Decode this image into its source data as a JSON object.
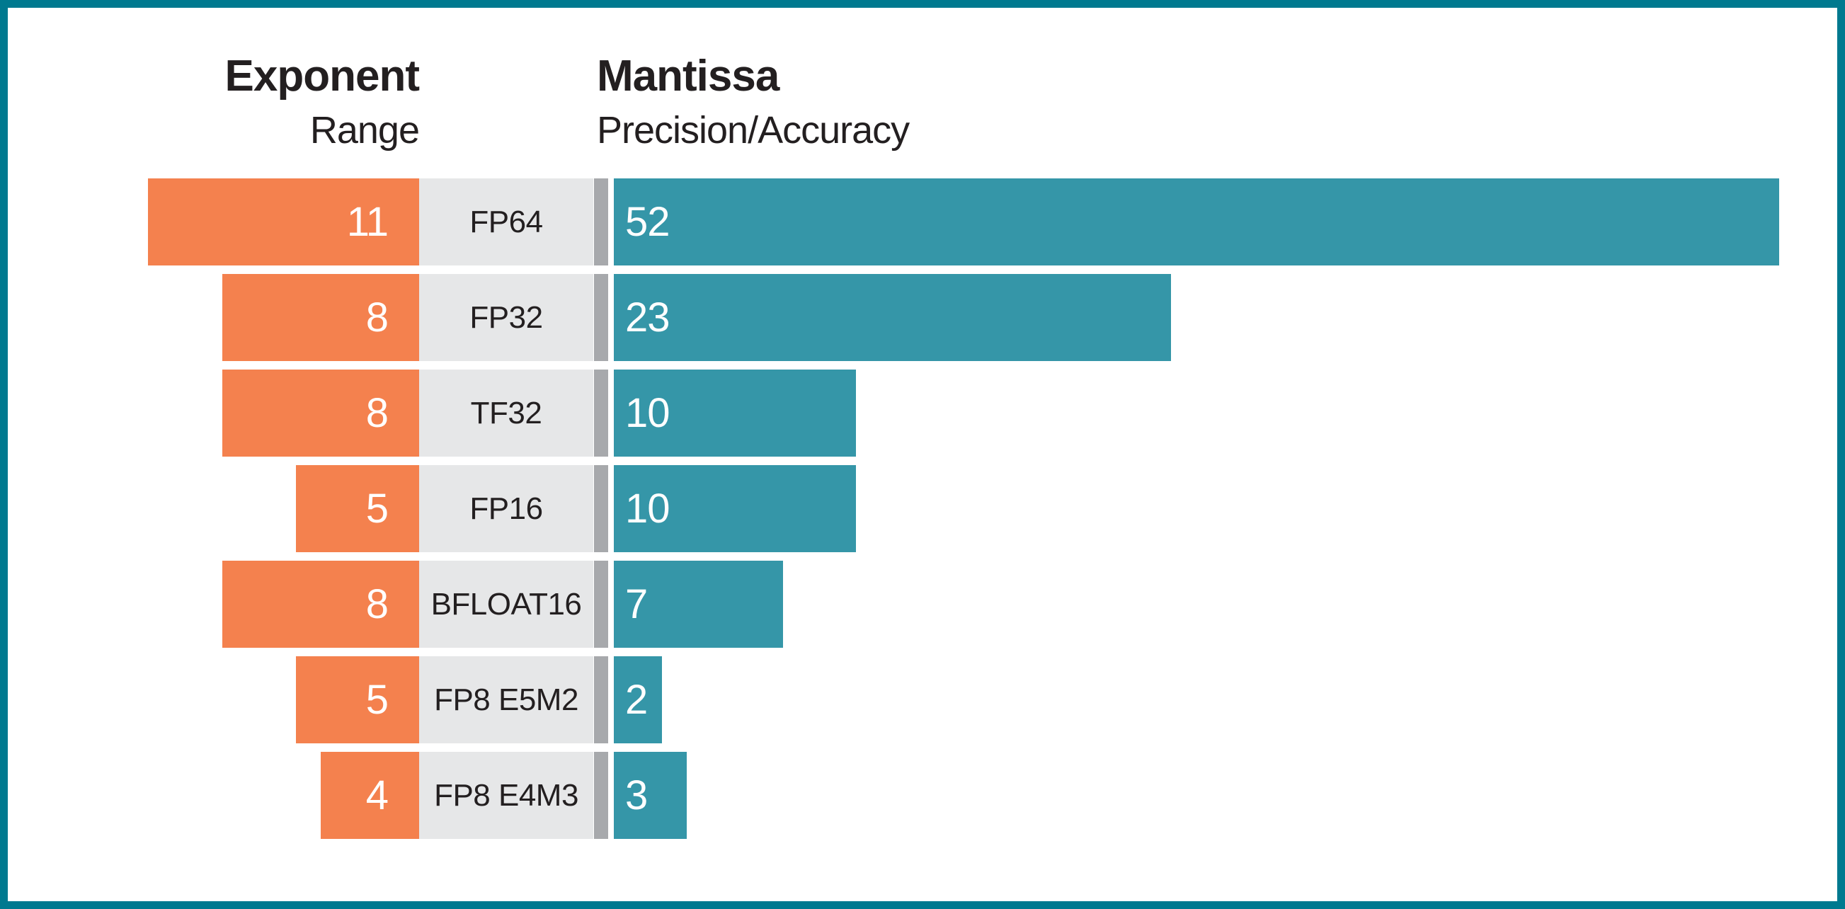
{
  "chart_data": {
    "type": "bar",
    "orientation": "horizontal-diverging",
    "title": "",
    "headers": {
      "exponent_title": "Exponent",
      "exponent_subtitle": "Range",
      "mantissa_title": "Mantissa",
      "mantissa_subtitle": "Precision/Accuracy"
    },
    "categories": [
      "FP64",
      "FP32",
      "TF32",
      "FP16",
      "BFLOAT16",
      "FP8 E5M2",
      "FP8 E4M3"
    ],
    "series": [
      {
        "name": "Exponent Range (bits)",
        "direction": "left",
        "color": "#F4814E",
        "values": [
          11,
          8,
          8,
          5,
          8,
          5,
          4
        ]
      },
      {
        "name": "Mantissa Precision/Accuracy (bits)",
        "direction": "right",
        "color": "#3596A8",
        "values": [
          52,
          23,
          10,
          10,
          7,
          2,
          3
        ]
      }
    ],
    "data_labels_shown": true,
    "legend_position": "none",
    "grid": false,
    "note_first_mantissa_bar_clipped": true
  },
  "colors": {
    "frame_border": "#00798F",
    "background": "#FFFFFF",
    "exponent_bar": "#F4814E",
    "mantissa_bar": "#3596A8",
    "label_cell": "#E6E7E8",
    "sign_divider": "#A7A9AC",
    "dark_text": "#231F20",
    "bar_text": "#FFFFFF"
  }
}
